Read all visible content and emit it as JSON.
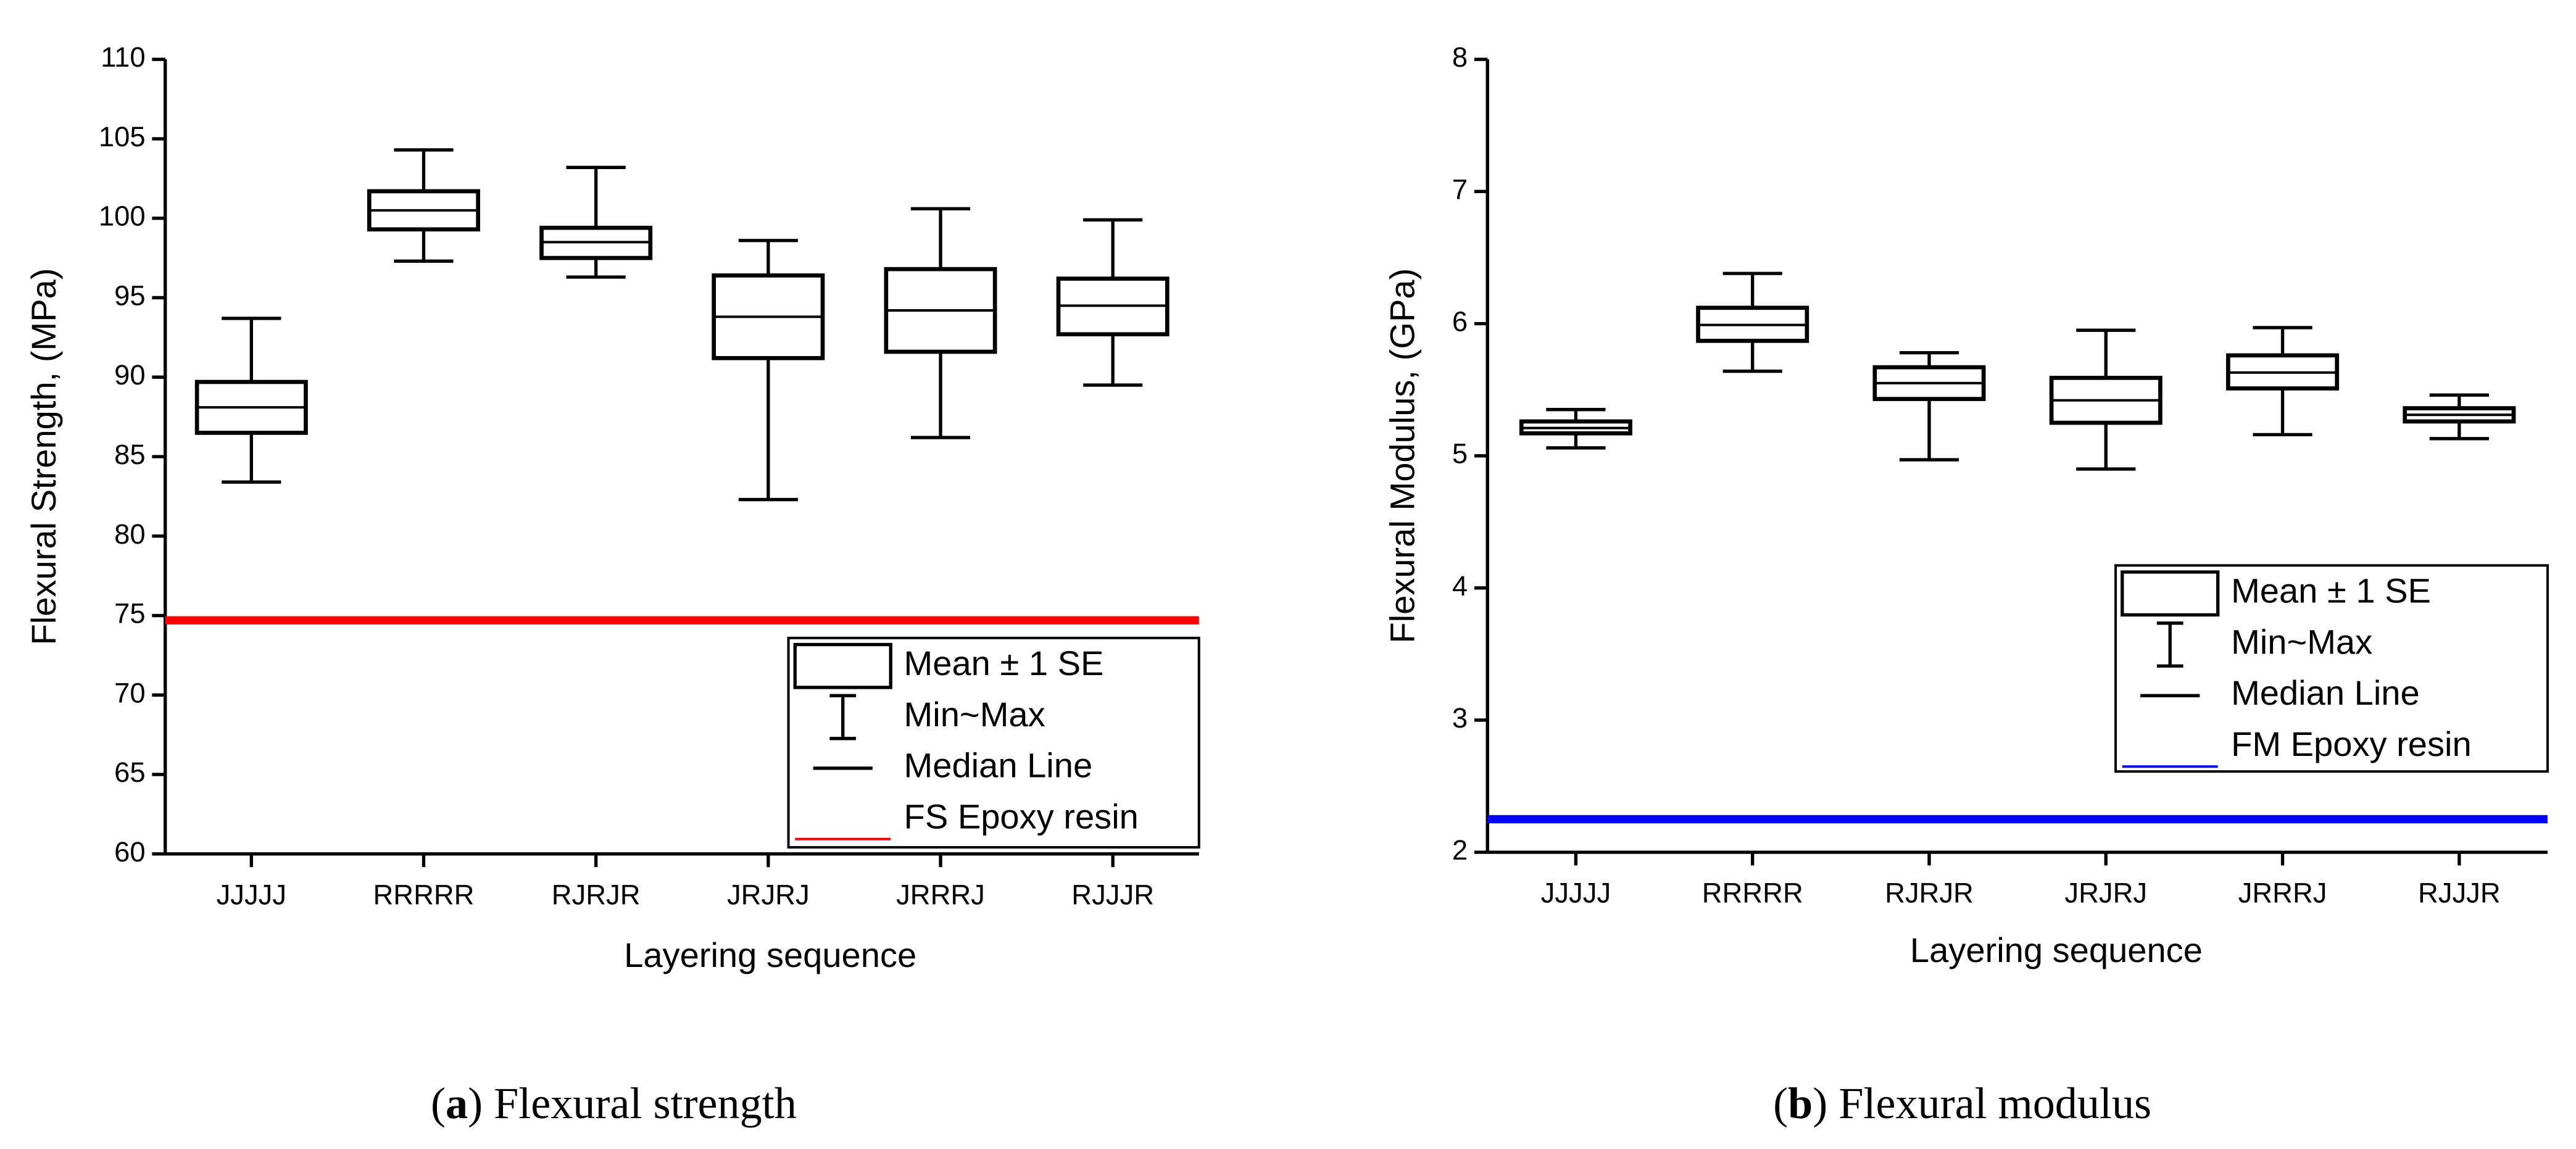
{
  "chart_data": [
    {
      "type": "box",
      "caption": [
        "(",
        "a",
        ") Flexural strength"
      ],
      "x_label": "Layering sequence",
      "y_label": "Flexural Strength, (MPa)",
      "categories": [
        "JJJJJ",
        "RRRRR",
        "RJRJR",
        "JRJRJ",
        "JRRRJ",
        "RJJJR"
      ],
      "max": [
        93.7,
        104.3,
        103.2,
        98.6,
        100.6,
        99.9
      ],
      "box_upper": [
        89.7,
        101.7,
        99.4,
        96.4,
        96.8,
        96.2
      ],
      "median": [
        88.1,
        100.5,
        98.5,
        93.8,
        94.2,
        94.5
      ],
      "box_lower": [
        86.5,
        99.3,
        97.5,
        91.2,
        91.6,
        92.7
      ],
      "min": [
        83.4,
        97.3,
        96.3,
        82.3,
        86.2,
        89.5
      ],
      "color": "#000000",
      "ylim": [
        60,
        110
      ],
      "yticks": [
        60,
        65,
        70,
        75,
        80,
        85,
        90,
        95,
        100,
        105,
        110
      ],
      "legend": [
        "Mean ± 1 SE",
        "Min~Max",
        "Median Line"
      ],
      "legend_position": "lower right",
      "reference": {
        "name": "FS Epoxy resin",
        "value": 74.7,
        "color": "#ff0000"
      }
    },
    {
      "type": "box",
      "caption": [
        "(",
        "b",
        ") Flexural modulus"
      ],
      "x_label": "Layering sequence",
      "y_label": "Flexural Modulus, (GPa)",
      "categories": [
        "JJJJJ",
        "RRRRR",
        "RJRJR",
        "JRJRJ",
        "JRRRJ",
        "RJJJR"
      ],
      "max": [
        5.35,
        6.38,
        5.78,
        5.95,
        5.97,
        5.46
      ],
      "box_upper": [
        5.26,
        6.12,
        5.67,
        5.59,
        5.76,
        5.36
      ],
      "median": [
        5.21,
        5.99,
        5.55,
        5.42,
        5.63,
        5.31
      ],
      "box_lower": [
        5.17,
        5.87,
        5.43,
        5.25,
        5.51,
        5.26
      ],
      "min": [
        5.06,
        5.64,
        4.97,
        4.9,
        5.16,
        5.13
      ],
      "color": "#000000",
      "ylim": [
        2,
        8
      ],
      "yticks": [
        2,
        3,
        4,
        5,
        6,
        7,
        8
      ],
      "legend": [
        "Mean ± 1 SE",
        "Min~Max",
        "Median Line"
      ],
      "legend_position": "right",
      "reference": {
        "name": "FM Epoxy resin",
        "value": 2.25,
        "color": "#0000ff"
      }
    }
  ]
}
